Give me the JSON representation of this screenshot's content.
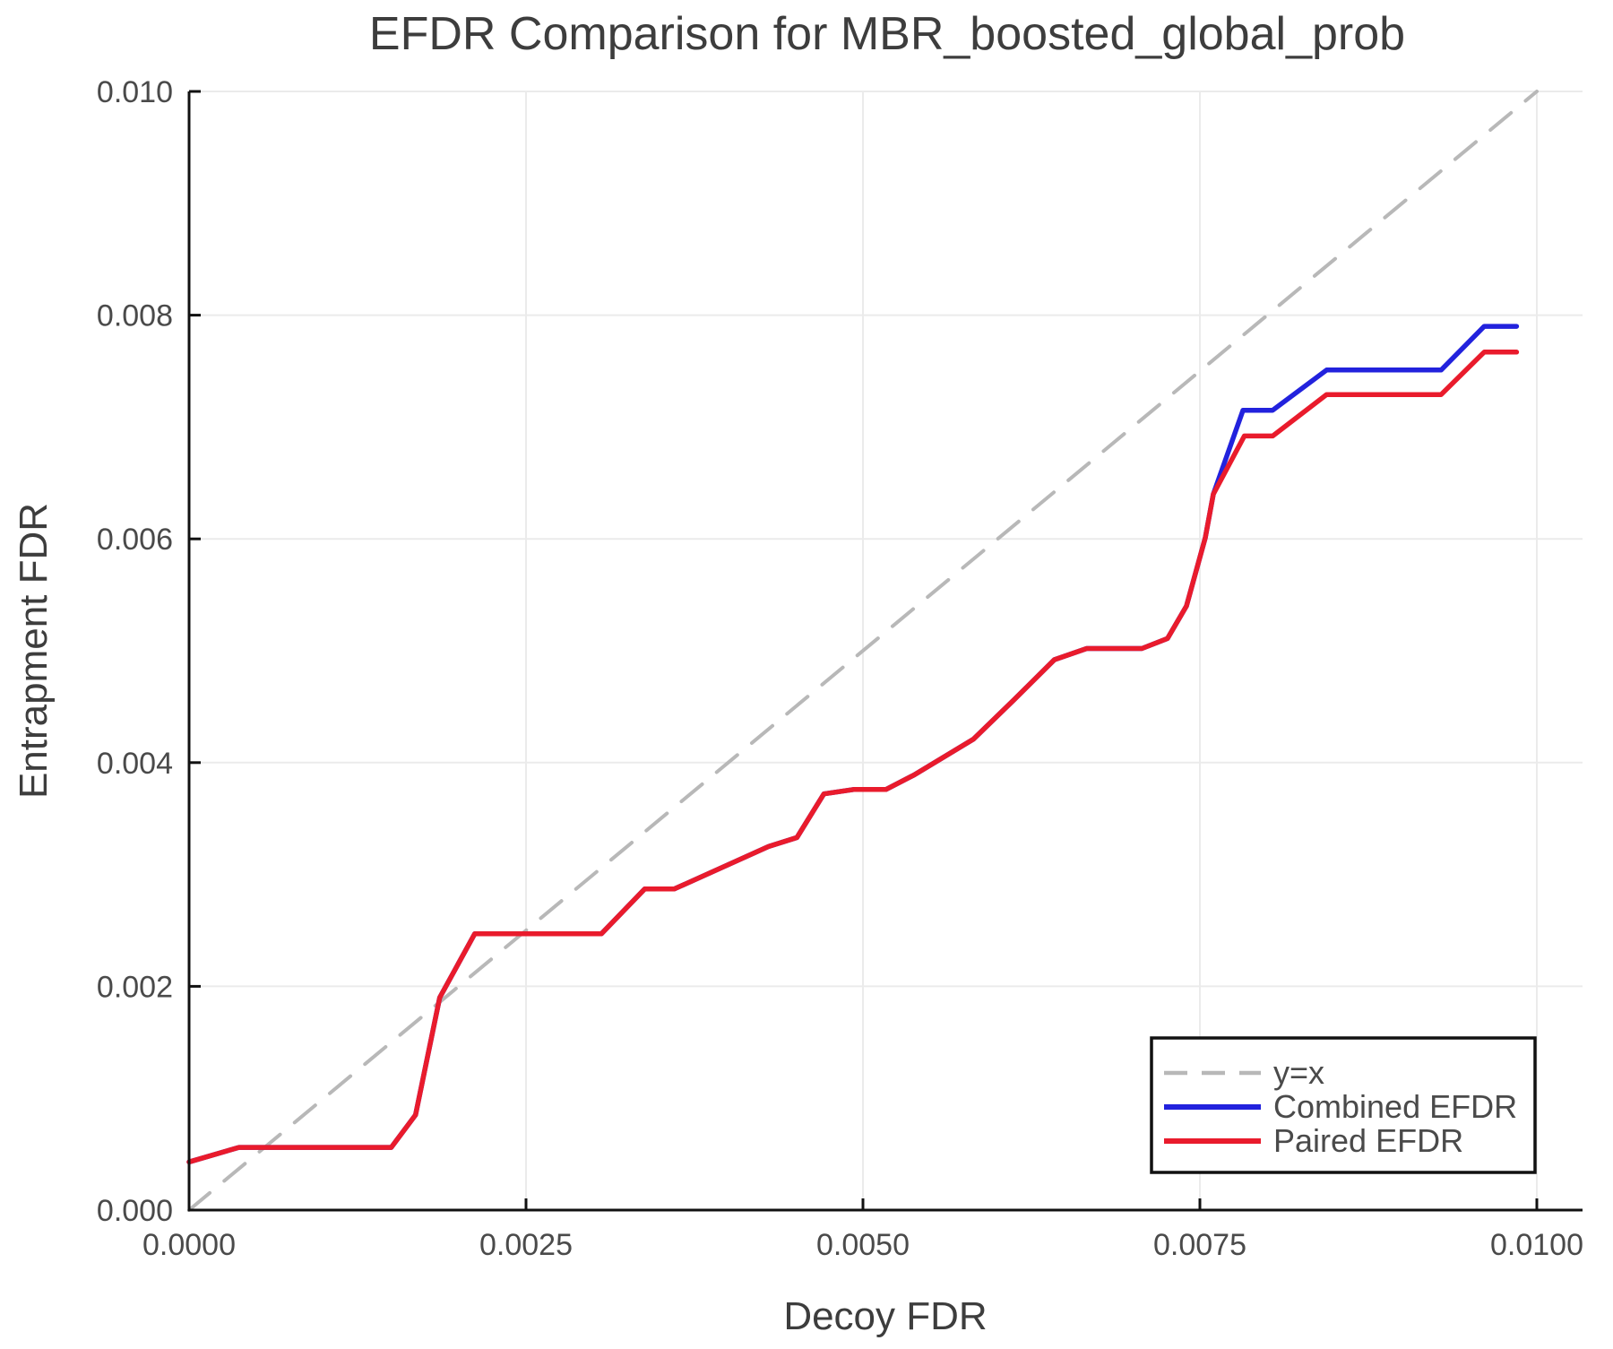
{
  "title": "EFDR Comparison for MBR_boosted_global_prob",
  "colors": {
    "background": "#ffffff",
    "grid": "#ebebeb",
    "spine": "#111111",
    "title_text": "#3d3d3d",
    "tick_text": "#4a4a4a",
    "identity_line": "#b8b8b8",
    "combined_line": "#2222dd",
    "paired_line": "#e91b2c",
    "legend_border": "#111111",
    "legend_background": "#ffffff"
  },
  "chart_data": {
    "type": "line",
    "title": "EFDR Comparison for MBR_boosted_global_prob",
    "xlabel": "Decoy FDR",
    "ylabel": "Entrapment FDR",
    "xlim": [
      0.0,
      0.01034
    ],
    "ylim": [
      0.0,
      0.01
    ],
    "grid": true,
    "legend_position": "bottom-right",
    "x_ticks": [
      0.0,
      0.0025,
      0.005,
      0.0075,
      0.01
    ],
    "x_tick_labels": [
      "0.0000",
      "0.0025",
      "0.0050",
      "0.0075",
      "0.0100"
    ],
    "y_ticks": [
      0.0,
      0.002,
      0.004,
      0.006,
      0.008,
      0.01
    ],
    "y_tick_labels": [
      "0.000",
      "0.002",
      "0.004",
      "0.006",
      "0.008",
      "0.010"
    ],
    "series": [
      {
        "name": "y=x",
        "style": "dashed",
        "color": "#b8b8b8",
        "points": [
          [
            0.0,
            0.0
          ],
          [
            0.01,
            0.01
          ]
        ]
      },
      {
        "name": "Combined EFDR",
        "style": "solid",
        "color": "#2222dd",
        "points": [
          [
            0.0,
            0.00043
          ],
          [
            0.00037,
            0.00056
          ],
          [
            0.0015,
            0.00056
          ],
          [
            0.00168,
            0.00085
          ],
          [
            0.00186,
            0.0019
          ],
          [
            0.00212,
            0.00247
          ],
          [
            0.00306,
            0.00247
          ],
          [
            0.00338,
            0.00287
          ],
          [
            0.0036,
            0.00287
          ],
          [
            0.0043,
            0.00325
          ],
          [
            0.00451,
            0.00333
          ],
          [
            0.00471,
            0.00372
          ],
          [
            0.00493,
            0.00376
          ],
          [
            0.00517,
            0.00376
          ],
          [
            0.00538,
            0.00389
          ],
          [
            0.00582,
            0.00421
          ],
          [
            0.00612,
            0.00456
          ],
          [
            0.00642,
            0.00492
          ],
          [
            0.00666,
            0.00502
          ],
          [
            0.00707,
            0.00502
          ],
          [
            0.00726,
            0.00511
          ],
          [
            0.0074,
            0.0054
          ],
          [
            0.00754,
            0.00601
          ],
          [
            0.0076,
            0.0064
          ],
          [
            0.00782,
            0.00715
          ],
          [
            0.00804,
            0.00715
          ],
          [
            0.00844,
            0.00751
          ],
          [
            0.00929,
            0.00751
          ],
          [
            0.00961,
            0.0079
          ],
          [
            0.00985,
            0.0079
          ]
        ]
      },
      {
        "name": "Paired EFDR",
        "style": "solid",
        "color": "#e91b2c",
        "points": [
          [
            0.0,
            0.00043
          ],
          [
            0.00037,
            0.00056
          ],
          [
            0.0015,
            0.00056
          ],
          [
            0.00168,
            0.00085
          ],
          [
            0.00186,
            0.0019
          ],
          [
            0.00212,
            0.00247
          ],
          [
            0.00306,
            0.00247
          ],
          [
            0.00338,
            0.00287
          ],
          [
            0.0036,
            0.00287
          ],
          [
            0.0043,
            0.00325
          ],
          [
            0.00451,
            0.00333
          ],
          [
            0.00471,
            0.00372
          ],
          [
            0.00493,
            0.00376
          ],
          [
            0.00517,
            0.00376
          ],
          [
            0.00538,
            0.00389
          ],
          [
            0.00582,
            0.00421
          ],
          [
            0.00612,
            0.00456
          ],
          [
            0.00642,
            0.00492
          ],
          [
            0.00666,
            0.00502
          ],
          [
            0.00707,
            0.00502
          ],
          [
            0.00726,
            0.00511
          ],
          [
            0.0074,
            0.0054
          ],
          [
            0.00754,
            0.00601
          ],
          [
            0.0076,
            0.0064
          ],
          [
            0.00783,
            0.00692
          ],
          [
            0.00804,
            0.00692
          ],
          [
            0.00844,
            0.00729
          ],
          [
            0.00929,
            0.00729
          ],
          [
            0.00961,
            0.00767
          ],
          [
            0.00985,
            0.00767
          ]
        ]
      }
    ]
  },
  "legend": {
    "entries": [
      "y=x",
      "Combined EFDR",
      "Paired EFDR"
    ]
  }
}
